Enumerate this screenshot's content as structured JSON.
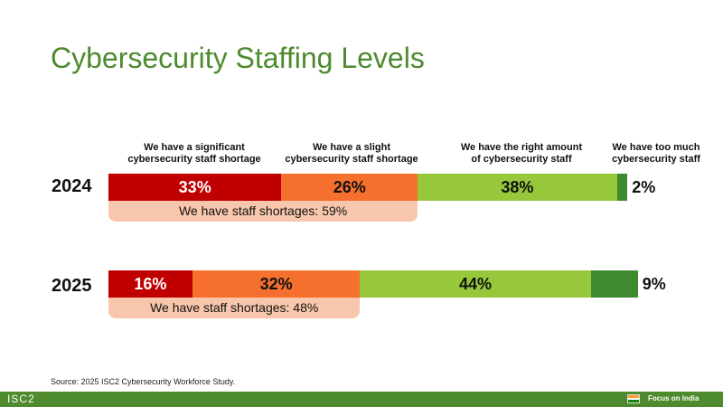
{
  "title": "Cybersecurity Staffing Levels",
  "chart_data": {
    "type": "bar",
    "orientation": "horizontal",
    "stacked": true,
    "categories": [
      "2024",
      "2025"
    ],
    "series": [
      {
        "name": "We have a significant cybersecurity staff shortage",
        "values": [
          33,
          16
        ],
        "labels": [
          "33%",
          "16%"
        ],
        "color": "#c00000"
      },
      {
        "name": "We have a slight cybersecurity staff shortage",
        "values": [
          26,
          32
        ],
        "labels": [
          "26%",
          "32%"
        ],
        "color": "#f5702e"
      },
      {
        "name": "We have the right amount of cybersecurity staff",
        "values": [
          38,
          44
        ],
        "labels": [
          "38%",
          "44%"
        ],
        "color": "#97c83c"
      },
      {
        "name": "We have too much cybersecurity staff",
        "values": [
          2,
          9
        ],
        "labels": [
          "2%",
          "9%"
        ],
        "color": "#3e8a30"
      }
    ],
    "shortage_notes": [
      "We have staff shortages: 59%",
      "We have staff shortages: 48%"
    ],
    "source": "Source: 2025 ISC2 Cybersecurity Workforce Study."
  },
  "column_labels": [
    [
      "We have a significant",
      "cybersecurity staff shortage"
    ],
    [
      "We have a slight",
      "cybersecurity staff shortage"
    ],
    [
      "We have the right amount",
      "of cybersecurity staff"
    ],
    [
      "We have too much",
      "cybersecurity staff"
    ]
  ],
  "footer": {
    "logo": "ISC2",
    "focus": "Focus on India"
  },
  "colors": {
    "brand_green": "#4e8a2e",
    "shortage_band": "#f8c6ac"
  }
}
